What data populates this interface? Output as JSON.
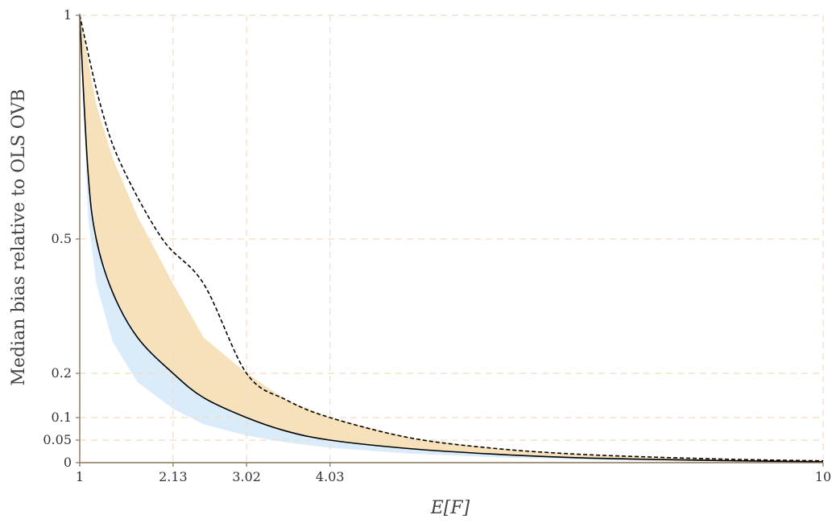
{
  "chart_data": {
    "type": "line",
    "title": "",
    "xlabel": "E[F]",
    "ylabel": "Median bias relative to OLS OVB",
    "xlim": [
      1,
      10
    ],
    "ylim": [
      0,
      1
    ],
    "x_ticks": [
      1,
      2.13,
      3.02,
      4.03,
      10
    ],
    "x_tick_labels": [
      "1",
      "2.13",
      "3.02",
      "4.03",
      "10"
    ],
    "y_ticks": [
      0,
      0.05,
      0.1,
      0.2,
      0.5,
      1
    ],
    "y_tick_labels": [
      "0",
      "0.05",
      "0.1",
      "0.2",
      "0.5",
      "1"
    ],
    "grid": true,
    "legend": "none",
    "series": [
      {
        "style": "dashed",
        "color": "#000000",
        "x": [
          1,
          1.25,
          1.5,
          2,
          2.5,
          3.02,
          3.5,
          4.03,
          5,
          6,
          7,
          8,
          9,
          10
        ],
        "y": [
          1,
          0.8,
          0.667,
          0.5,
          0.4,
          0.2,
          0.14,
          0.1,
          0.055,
          0.032,
          0.019,
          0.012,
          0.007,
          0.004
        ]
      },
      {
        "style": "solid",
        "color": "#000000",
        "x": [
          1,
          1.1,
          1.2,
          1.4,
          1.7,
          2.13,
          2.5,
          3.02,
          3.5,
          4.03,
          5,
          6,
          7,
          8,
          9,
          10
        ],
        "y": [
          1,
          0.65,
          0.5,
          0.38,
          0.28,
          0.2,
          0.145,
          0.1,
          0.07,
          0.05,
          0.031,
          0.019,
          0.011,
          0.007,
          0.004,
          0.002
        ]
      }
    ],
    "bands": [
      {
        "color": "#f5deb3",
        "x": [
          1,
          1.1,
          1.2,
          1.4,
          1.7,
          2.13,
          2.5,
          3.02,
          3.5,
          4.03,
          5,
          6,
          7,
          8,
          9,
          10
        ],
        "lower": [
          1,
          0.65,
          0.5,
          0.38,
          0.28,
          0.2,
          0.145,
          0.1,
          0.07,
          0.05,
          0.031,
          0.019,
          0.011,
          0.007,
          0.004,
          0.002
        ],
        "upper": [
          1,
          0.9,
          0.8,
          0.68,
          0.55,
          0.4,
          0.28,
          0.2,
          0.14,
          0.1,
          0.055,
          0.032,
          0.019,
          0.012,
          0.007,
          0.004
        ]
      },
      {
        "color": "#d6eaf8",
        "x": [
          1,
          1.1,
          1.2,
          1.4,
          1.7,
          2.13,
          2.5,
          3.02,
          3.5,
          4.03,
          5,
          6,
          7,
          8,
          9,
          10
        ],
        "lower": [
          1,
          0.55,
          0.4,
          0.27,
          0.18,
          0.12,
          0.085,
          0.06,
          0.045,
          0.033,
          0.02,
          0.012,
          0.007,
          0.004,
          0.002,
          0.001
        ],
        "upper": [
          1,
          0.65,
          0.5,
          0.38,
          0.28,
          0.2,
          0.145,
          0.1,
          0.07,
          0.05,
          0.031,
          0.019,
          0.011,
          0.007,
          0.004,
          0.002
        ]
      }
    ],
    "colors": {
      "axis": "#8a7355",
      "grid": "#f0dcc4",
      "dashed_line": "#000000",
      "solid_line": "#000000",
      "band_upper": "#f5deb3",
      "band_lower": "#d6eaf8"
    }
  }
}
